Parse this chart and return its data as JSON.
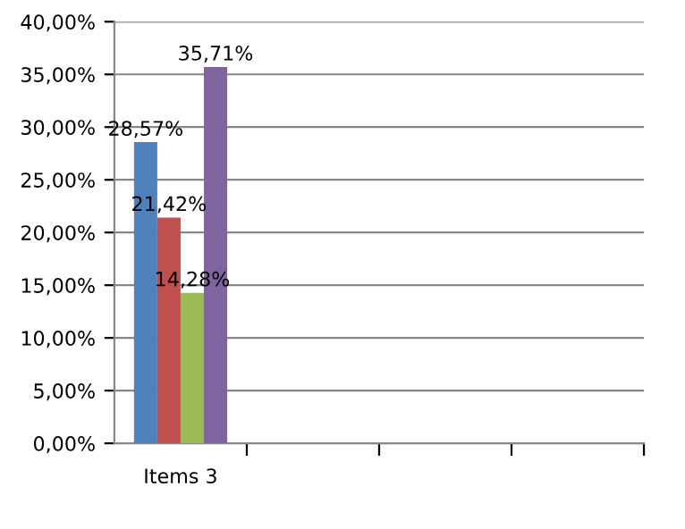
{
  "chart_data": {
    "type": "bar",
    "categories": [
      "Items 3",
      null,
      null,
      null
    ],
    "series": [
      {
        "color": "#4f81bd",
        "values": [
          28.57,
          null,
          null,
          null
        ],
        "value_labels": [
          "28,57%",
          null,
          null,
          null
        ]
      },
      {
        "color": "#c0504d",
        "values": [
          21.42,
          null,
          null,
          null
        ],
        "value_labels": [
          "21,42%",
          null,
          null,
          null
        ]
      },
      {
        "color": "#9bbb59",
        "values": [
          14.28,
          null,
          null,
          null
        ],
        "value_labels": [
          "14,28%",
          null,
          null,
          null
        ]
      },
      {
        "color": "#8064a2",
        "values": [
          35.71,
          null,
          null,
          null
        ],
        "value_labels": [
          "35,71%",
          null,
          null,
          null
        ]
      }
    ],
    "ylim": [
      0,
      40
    ],
    "yticks": [
      {
        "value": 0,
        "label": "0,00%"
      },
      {
        "value": 5,
        "label": "5,00%"
      },
      {
        "value": 10,
        "label": "10,00%"
      },
      {
        "value": 15,
        "label": "15,00%"
      },
      {
        "value": 20,
        "label": "20,00%"
      },
      {
        "value": 25,
        "label": "25,00%"
      },
      {
        "value": 30,
        "label": "30,00%"
      },
      {
        "value": 35,
        "label": "35,00%"
      },
      {
        "value": 40,
        "label": "40,00%"
      }
    ],
    "grid": "y",
    "legend": false
  }
}
